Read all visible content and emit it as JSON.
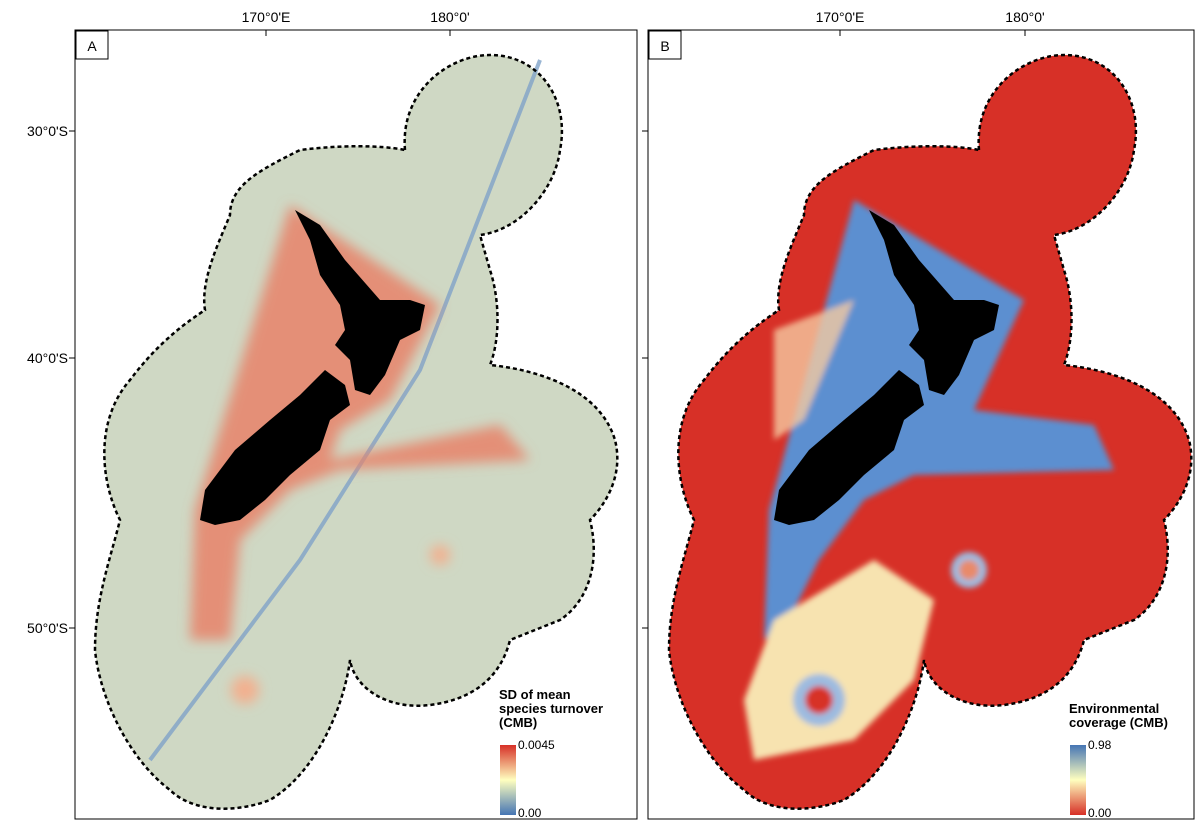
{
  "panels": [
    {
      "label": "A",
      "x_labels": [
        "170°0'E",
        "180°0'"
      ],
      "y_labels": [
        "30°0'S",
        "40°0'S",
        "50°0'S"
      ],
      "legend": {
        "title": "SD of mean species turnover (CMB)",
        "max_label": "0.0045",
        "min_label": "0.00"
      }
    },
    {
      "label": "B",
      "x_labels": [
        "170°0'E",
        "180°0'"
      ],
      "legend": {
        "title": "Environmental coverage (CMB)",
        "max_label": "0.98",
        "min_label": "0.00"
      }
    }
  ]
}
